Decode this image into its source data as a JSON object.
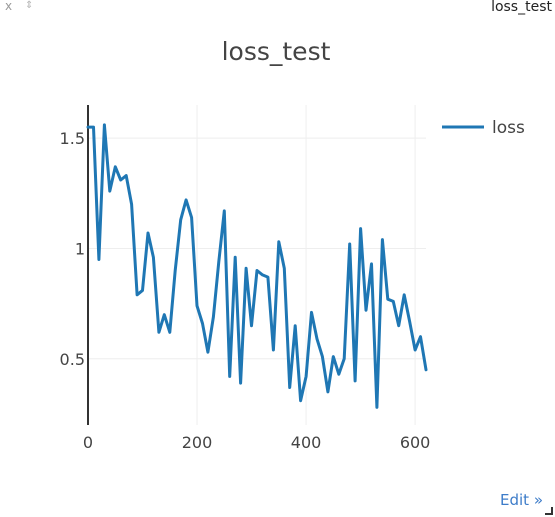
{
  "pane": {
    "close_label": "x",
    "drag_glyph": "⇕",
    "title": "loss_test",
    "edit_label": "Edit »"
  },
  "chart_data": {
    "type": "line",
    "title": "loss_test",
    "xlabel": "",
    "ylabel": "",
    "xlim": [
      0,
      620
    ],
    "ylim": [
      0.2,
      1.65
    ],
    "xticks": [
      0,
      200,
      400,
      600
    ],
    "xtick_labels": [
      "0",
      "200",
      "400",
      "600"
    ],
    "yticks": [
      0.5,
      1.0,
      1.5
    ],
    "ytick_labels": [
      "0.5",
      "1",
      "1.5"
    ],
    "grid": true,
    "legend_position": "top-right",
    "series": [
      {
        "name": "loss",
        "color": "#1f77b4",
        "x": [
          0,
          10,
          20,
          30,
          40,
          50,
          60,
          70,
          80,
          90,
          100,
          110,
          120,
          130,
          140,
          150,
          160,
          170,
          180,
          190,
          200,
          210,
          220,
          230,
          240,
          250,
          260,
          270,
          280,
          290,
          300,
          310,
          320,
          330,
          340,
          350,
          360,
          370,
          380,
          390,
          400,
          410,
          420,
          430,
          440,
          450,
          460,
          470,
          480,
          490,
          500,
          510,
          520,
          530,
          540,
          550,
          560,
          570,
          580,
          590,
          600,
          610,
          620
        ],
        "y": [
          1.55,
          1.55,
          0.95,
          1.56,
          1.26,
          1.37,
          1.31,
          1.33,
          1.2,
          0.79,
          0.81,
          1.07,
          0.96,
          0.62,
          0.7,
          0.62,
          0.9,
          1.13,
          1.22,
          1.14,
          0.74,
          0.66,
          0.53,
          0.69,
          0.94,
          1.17,
          0.42,
          0.96,
          0.39,
          0.91,
          0.65,
          0.9,
          0.88,
          0.87,
          0.54,
          1.03,
          0.91,
          0.37,
          0.65,
          0.31,
          0.42,
          0.71,
          0.59,
          0.51,
          0.35,
          0.51,
          0.43,
          0.5,
          1.02,
          0.4,
          1.09,
          0.72,
          0.93,
          0.28,
          1.04,
          0.77,
          0.76,
          0.65,
          0.79,
          0.67,
          0.54,
          0.6,
          0.45
        ]
      }
    ]
  }
}
